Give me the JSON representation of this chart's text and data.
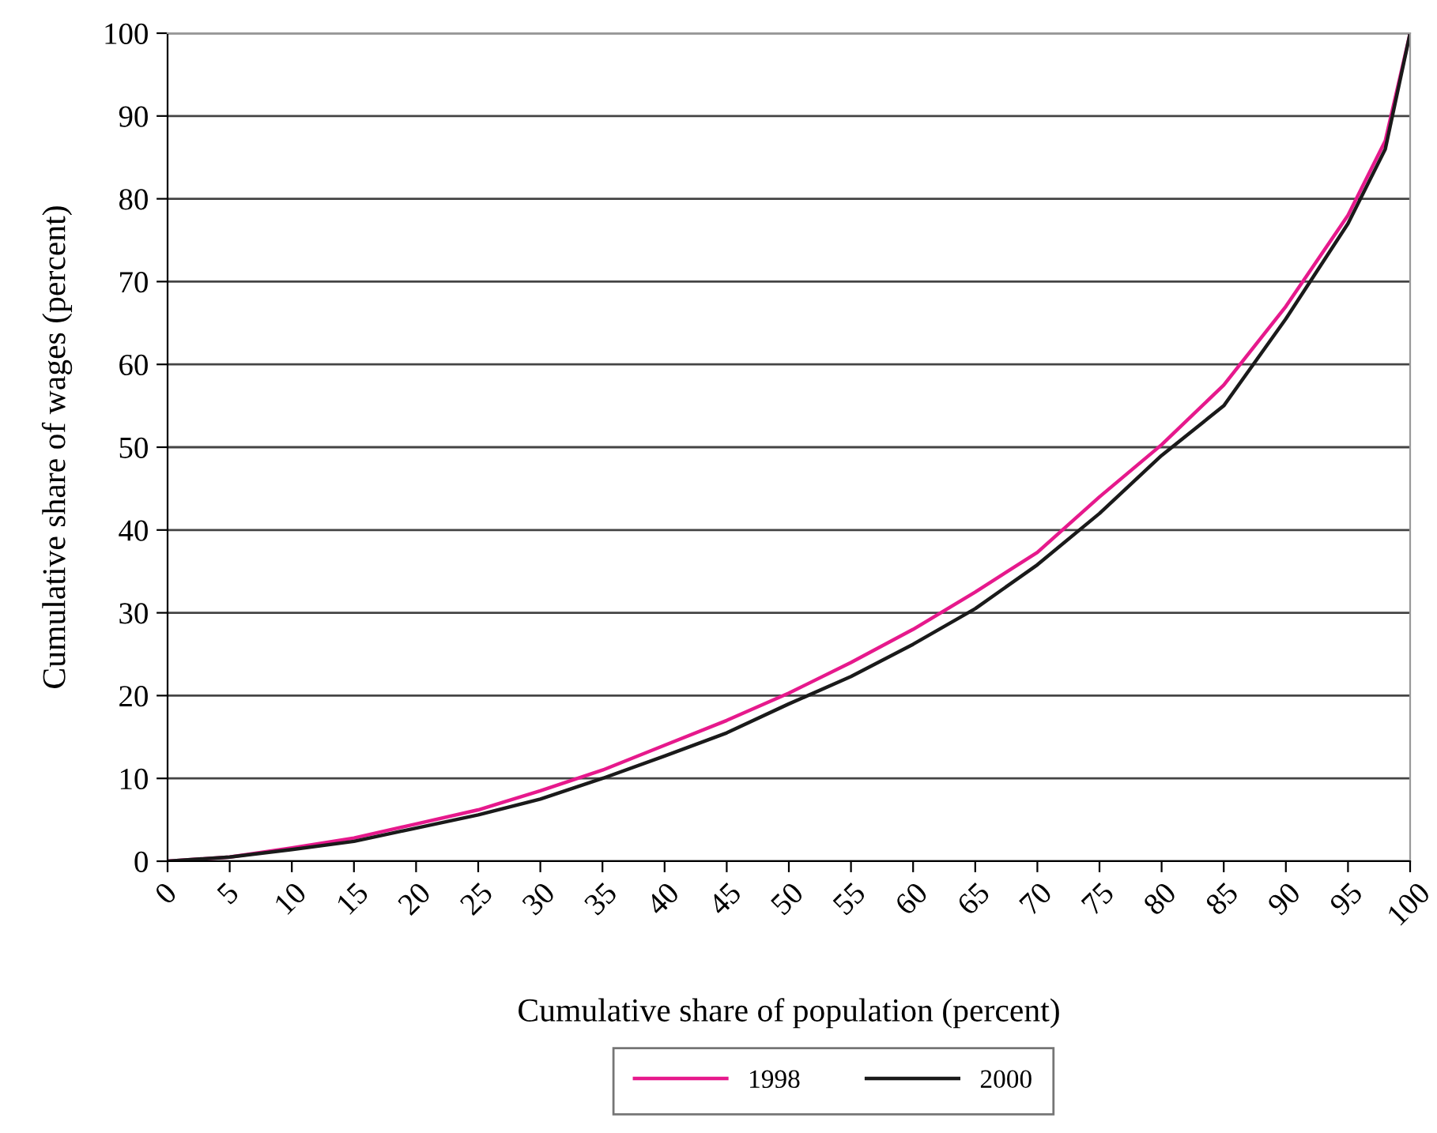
{
  "chart_data": {
    "type": "line",
    "xlabel": "Cumulative share of population (percent)",
    "ylabel": "Cumulative share of wages (percent)",
    "x": [
      0,
      5,
      10,
      15,
      20,
      25,
      30,
      35,
      40,
      45,
      50,
      55,
      60,
      65,
      70,
      75,
      80,
      85,
      90,
      95,
      98,
      100
    ],
    "series": [
      {
        "name": "1998",
        "color": "#e6198c",
        "values": [
          0,
          0.5,
          1.6,
          2.8,
          4.5,
          6.2,
          8.5,
          11,
          14,
          17,
          20.3,
          24,
          28,
          32.5,
          37.3,
          44,
          50.3,
          57.5,
          67,
          78,
          87,
          100
        ]
      },
      {
        "name": "2000",
        "color": "#1a1a1a",
        "values": [
          0,
          0.5,
          1.4,
          2.4,
          4.0,
          5.6,
          7.5,
          10,
          12.7,
          15.5,
          19,
          22.3,
          26.2,
          30.5,
          35.8,
          42,
          49,
          55,
          65.5,
          77,
          86,
          100
        ]
      }
    ],
    "xlim": [
      0,
      100
    ],
    "xticks": [
      0,
      5,
      10,
      15,
      20,
      25,
      30,
      35,
      40,
      45,
      50,
      55,
      60,
      65,
      70,
      75,
      80,
      85,
      90,
      95,
      100
    ],
    "ylim": [
      0,
      100
    ],
    "yticks": [
      0,
      10,
      20,
      30,
      40,
      50,
      60,
      70,
      80,
      90,
      100
    ],
    "grid": "y",
    "legend": "bottom",
    "marker": "none",
    "line_style": "solid"
  }
}
